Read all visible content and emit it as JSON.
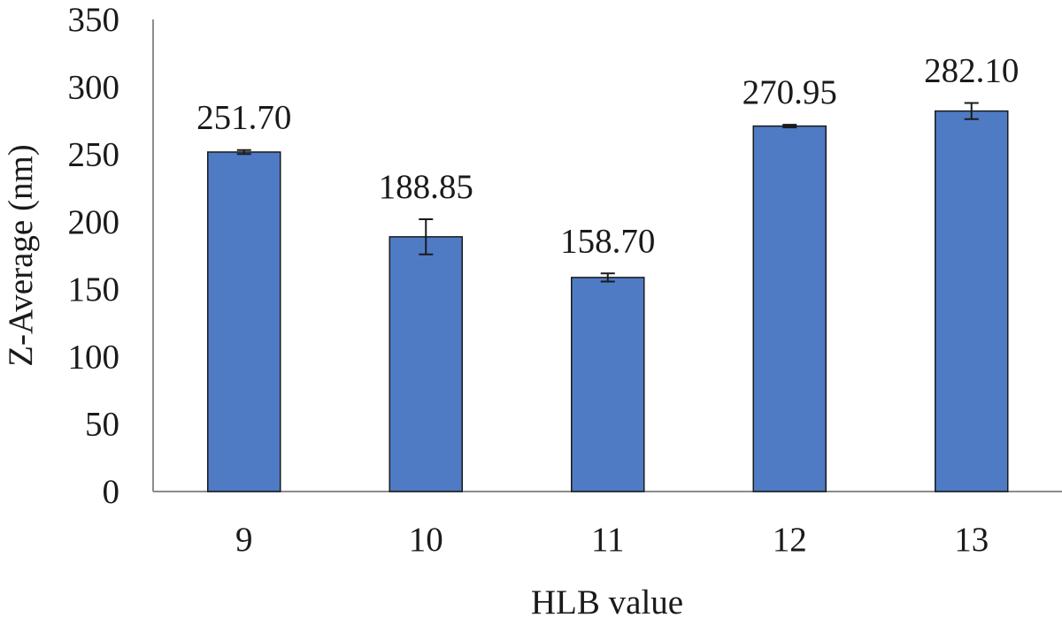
{
  "chart_data": {
    "type": "bar",
    "categories": [
      "9",
      "10",
      "11",
      "12",
      "13"
    ],
    "values": [
      251.7,
      188.85,
      158.7,
      270.95,
      282.1
    ],
    "value_labels": [
      "251.70",
      "188.85",
      "158.70",
      "270.95",
      "282.10"
    ],
    "error": [
      1.5,
      13.0,
      3.0,
      1.0,
      6.0
    ],
    "title": "",
    "xlabel": "HLB value",
    "ylabel": "Z-Average (nm)",
    "ylim": [
      0,
      350
    ],
    "yticks": [
      "0",
      "50",
      "100",
      "150",
      "200",
      "250",
      "300",
      "350"
    ],
    "bar_color": "#4F7BC4",
    "bar_edge_color": "#1a1a1a",
    "grid": false,
    "legend": "none"
  }
}
